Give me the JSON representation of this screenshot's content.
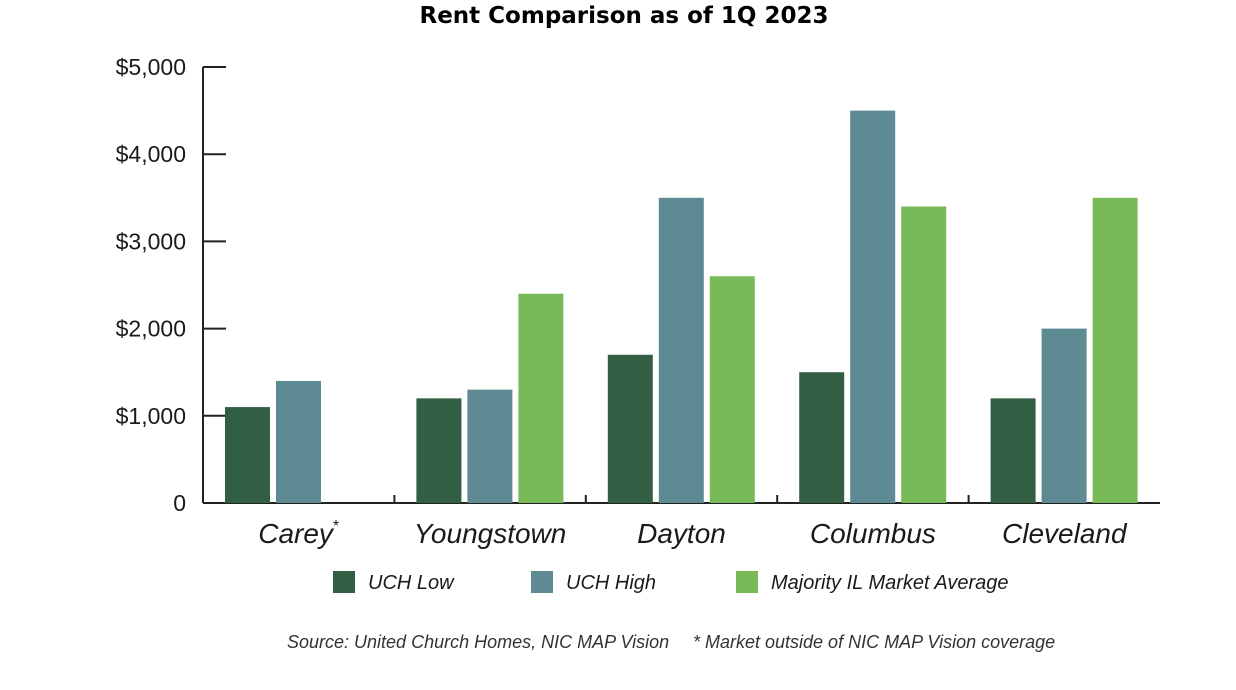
{
  "colors": {
    "uch_low": "#325e43",
    "uch_high": "#5d8a93",
    "market_avg": "#79ba58",
    "axis": "#222222"
  },
  "chart_data": {
    "type": "bar",
    "title": "Rent Comparison as of 1Q 2023",
    "categories": [
      {
        "label": "Carey",
        "marker": "*"
      },
      {
        "label": "Youngstown",
        "marker": ""
      },
      {
        "label": "Dayton",
        "marker": ""
      },
      {
        "label": "Columbus",
        "marker": ""
      },
      {
        "label": "Cleveland",
        "marker": ""
      }
    ],
    "series": [
      {
        "name": "UCH Low",
        "color_key": "uch_low",
        "values": [
          1100,
          1200,
          1700,
          1500,
          1200
        ]
      },
      {
        "name": "UCH High",
        "color_key": "uch_high",
        "values": [
          1400,
          1300,
          3500,
          4500,
          2000
        ]
      },
      {
        "name": "Majority IL Market Average",
        "color_key": "market_avg",
        "values": [
          null,
          2400,
          2600,
          3400,
          3500
        ]
      }
    ],
    "yticks": [
      "0",
      "$1,000",
      "$2,000",
      "$3,000",
      "$4,000",
      "$5,000"
    ],
    "ylim": [
      0,
      5000
    ],
    "xlabel": "",
    "ylabel": "",
    "grid": false,
    "legend_position": "bottom"
  },
  "footnote": {
    "source": "Source: United Church Homes, NIC MAP Vision",
    "note": "* Market outside of NIC MAP Vision coverage"
  }
}
